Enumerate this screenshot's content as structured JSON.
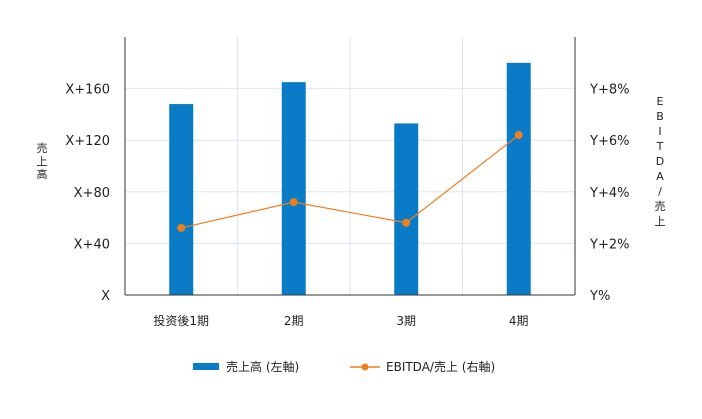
{
  "chart_data": {
    "type": "bar",
    "categories": [
      "投资後1期",
      "2期",
      "3期",
      "4期"
    ],
    "series": [
      {
        "name": "売上高 (左軸)",
        "kind": "bar",
        "axis": "left",
        "color": "#0a7cc7",
        "values": [
          148,
          165,
          133,
          180
        ]
      },
      {
        "name": "EBITDA/売上 (右軸)",
        "kind": "line",
        "axis": "right",
        "color": "#ee7f1f",
        "values": [
          2.6,
          3.6,
          2.8,
          6.2
        ]
      }
    ],
    "left_axis": {
      "label": "売上高",
      "ticks": [
        {
          "value": 0,
          "label": "X"
        },
        {
          "value": 40,
          "label": "X+40"
        },
        {
          "value": 80,
          "label": "X+80"
        },
        {
          "value": 120,
          "label": "X+120"
        },
        {
          "value": 160,
          "label": "X+160"
        }
      ],
      "range": [
        0,
        200
      ]
    },
    "right_axis": {
      "label": "EBITDA/売上",
      "ticks": [
        {
          "value": 0,
          "label": "Y%"
        },
        {
          "value": 2,
          "label": "Y+2%"
        },
        {
          "value": 4,
          "label": "Y+4%"
        },
        {
          "value": 6,
          "label": "Y+6%"
        },
        {
          "value": 8,
          "label": "Y+8%"
        }
      ],
      "range": [
        0,
        10
      ]
    },
    "grid": true,
    "legend": "bottom"
  }
}
